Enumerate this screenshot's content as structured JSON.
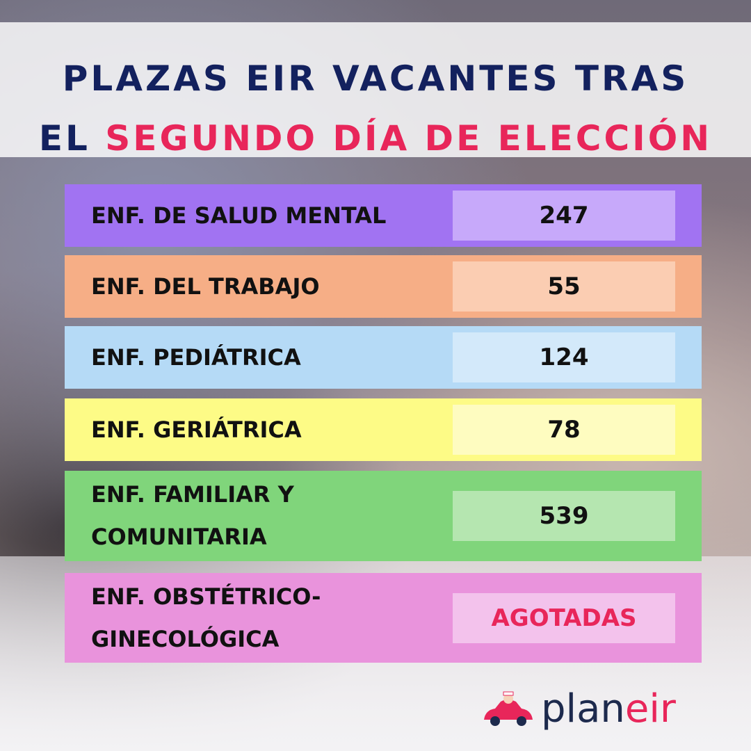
{
  "header": {
    "line1": "PLAZAS EIR VACANTES TRAS",
    "line2_a": "EL",
    "line2_b": "SEGUNDO DÍA DE ELECCIÓN"
  },
  "rows": [
    {
      "label_lines": [
        "ENF. DE SALUD MENTAL"
      ],
      "value": 247
    },
    {
      "label_lines": [
        "ENF. DEL TRABAJO"
      ],
      "value": 55
    },
    {
      "label_lines": [
        "ENF. PEDIÁTRICA"
      ],
      "value": 124
    },
    {
      "label_lines": [
        "ENF. GERIÁTRICA"
      ],
      "value": 78
    },
    {
      "label_lines": [
        "ENF. FAMILIAR Y",
        "COMUNITARIA"
      ],
      "value": 539
    },
    {
      "label_lines": [
        "ENF. OBSTÉTRICO-",
        "GINECOLÓGICA"
      ],
      "value": "AGOTADAS"
    }
  ],
  "logo": {
    "part_a": "plan",
    "part_b": "eir"
  }
}
